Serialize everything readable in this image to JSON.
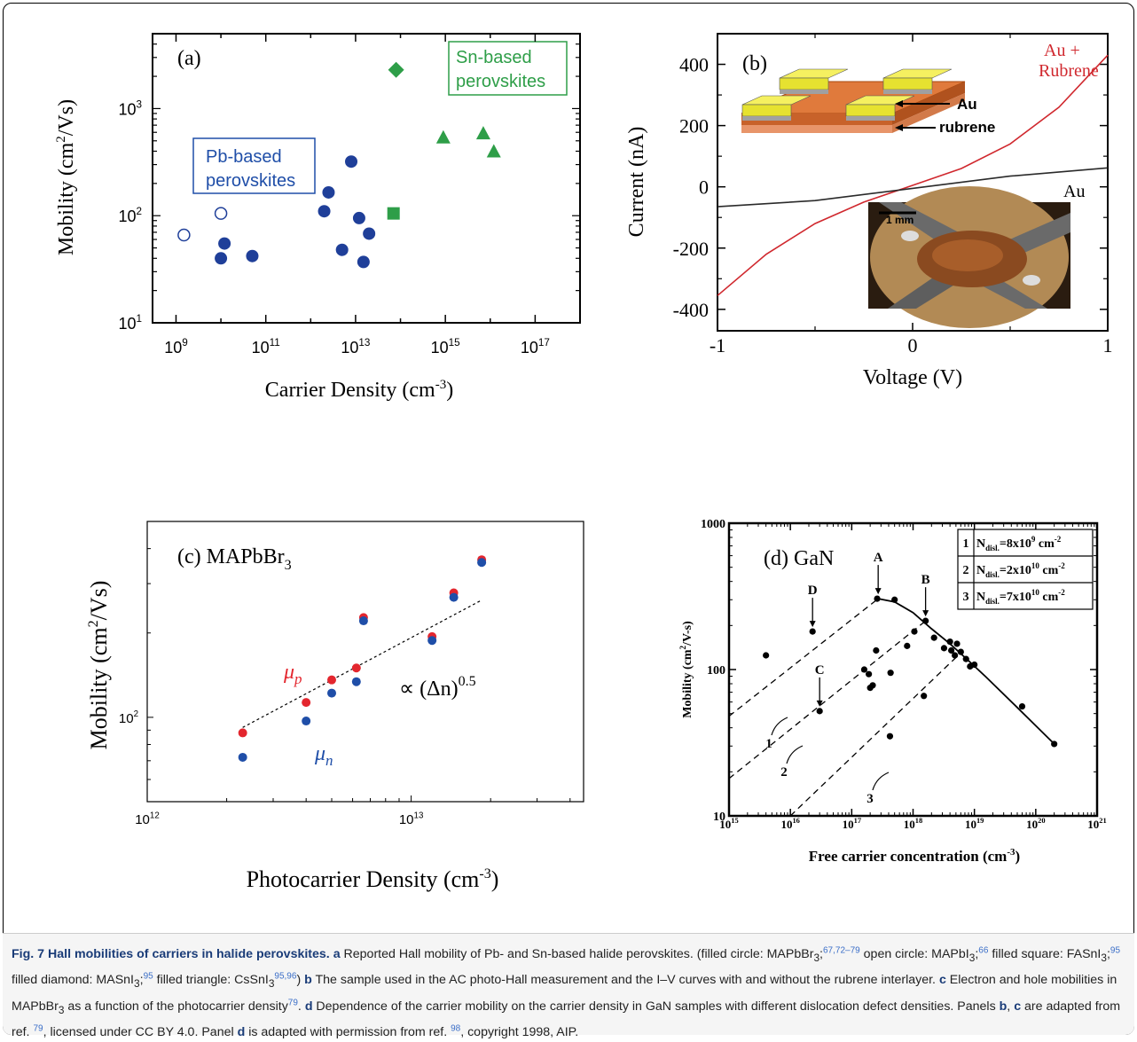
{
  "panels": [
    {
      "id": "a",
      "label": "(a)",
      "type": "scatter",
      "xlabel": "Carrier Density (cm",
      "xlabel_sup": "-3",
      "xlabel_end": ")",
      "ylabel": "Mobility (cm",
      "ylabel_sup": "2",
      "ylabel_end": "/Vs)",
      "x_scale": "log",
      "y_scale": "log",
      "xlim": [
        300000000.0,
        1e+18
      ],
      "ylim": [
        10,
        5000
      ],
      "x_ticks": [
        {
          "base": "10",
          "exp": "9",
          "v": 1000000000.0
        },
        {
          "base": "10",
          "exp": "11",
          "v": 100000000000.0
        },
        {
          "base": "10",
          "exp": "13",
          "v": 10000000000000.0
        },
        {
          "base": "10",
          "exp": "15",
          "v": 1000000000000000.0
        },
        {
          "base": "10",
          "exp": "17",
          "v": 1e+17
        }
      ],
      "y_ticks": [
        {
          "base": "10",
          "exp": "1",
          "v": 10
        },
        {
          "base": "10",
          "exp": "2",
          "v": 100
        },
        {
          "base": "10",
          "exp": "3",
          "v": 1000
        }
      ],
      "annotations": [
        {
          "name": "pb-label",
          "lines": [
            "Pb-based",
            "perovskites"
          ],
          "color": "#1f4ea8"
        },
        {
          "name": "sn-label",
          "lines": [
            "Sn-based",
            "perovskites"
          ],
          "color": "#2e9e48"
        }
      ],
      "series": [
        {
          "marker": "filled-circle",
          "color": "#1f3f99",
          "points": [
            [
              10000000000.0,
              40
            ],
            [
              12000000000.0,
              55
            ],
            [
              50000000000.0,
              42
            ],
            [
              5000000000000.0,
              48
            ],
            [
              12000000000000.0,
              95
            ],
            [
              15000000000000.0,
              37
            ],
            [
              20000000000000.0,
              68
            ],
            [
              2000000000000.0,
              110
            ],
            [
              2500000000000.0,
              165
            ],
            [
              8000000000000.0,
              320
            ]
          ]
        },
        {
          "marker": "open-circle",
          "color": "#1f3f99",
          "points": [
            [
              1500000000.0,
              66
            ],
            [
              10000000000.0,
              105
            ]
          ]
        },
        {
          "marker": "filled-square",
          "color": "#2e9e48",
          "points": [
            [
              70000000000000.0,
              105
            ]
          ]
        },
        {
          "marker": "filled-diamond",
          "color": "#2e9e48",
          "points": [
            [
              80000000000000.0,
              2300
            ]
          ]
        },
        {
          "marker": "filled-triangle",
          "color": "#2e9e48",
          "points": [
            [
              900000000000000.0,
              540
            ],
            [
              7000000000000000.0,
              590
            ],
            [
              1.2e+16,
              400
            ]
          ]
        }
      ]
    },
    {
      "id": "b",
      "label": "(b)",
      "type": "line",
      "xlabel": "Voltage (V)",
      "ylabel": "Current (nA)",
      "xlim": [
        -1,
        1
      ],
      "ylim": [
        -470,
        500
      ],
      "x_ticks": [
        "-1",
        "0",
        "1"
      ],
      "x_tick_values": [
        -1,
        0,
        1
      ],
      "y_ticks": [
        "-400",
        "-200",
        "0",
        "200",
        "400"
      ],
      "y_tick_values": [
        -400,
        -200,
        0,
        200,
        400
      ],
      "series": [
        {
          "name_lines": [
            "Au +",
            "Rubrene"
          ],
          "color": "#d0282e",
          "x": [
            -1,
            -0.75,
            -0.5,
            -0.25,
            0,
            0.25,
            0.5,
            0.75,
            1
          ],
          "y": [
            -355,
            -220,
            -120,
            -50,
            5,
            60,
            140,
            260,
            430
          ]
        },
        {
          "name_lines": [
            "Au"
          ],
          "color": "#2a2a2a",
          "x": [
            -1,
            -0.5,
            0,
            0.5,
            1
          ],
          "y": [
            -65,
            -45,
            -5,
            35,
            62
          ]
        }
      ],
      "inset_labels": {
        "au": "Au",
        "rubrene": "rubrene",
        "scale": "1 mm"
      }
    },
    {
      "id": "c",
      "label": "(c) MAPbBr",
      "label_sub": "3",
      "type": "scatter",
      "xlabel": "Photocarrier Density (cm",
      "xlabel_sup": "-3",
      "xlabel_end": ")",
      "ylabel": "Mobility (cm",
      "ylabel_sup": "2",
      "ylabel_end": "/Vs)",
      "x_scale": "log",
      "y_scale": "log",
      "xlim": [
        1000000000000.0,
        45000000000000.0
      ],
      "ylim": [
        50,
        500
      ],
      "x_ticks": [
        {
          "base": "10",
          "exp": "12",
          "v": 1000000000000.0
        },
        {
          "base": "10",
          "exp": "13",
          "v": 10000000000000.0
        }
      ],
      "y_ticks": [
        {
          "base": "10",
          "exp": "2",
          "v": 100
        }
      ],
      "mu_p_label": "μ",
      "mu_p_sub": "p",
      "mu_n_label": "μ",
      "mu_n_sub": "n",
      "fit_label": "∝ (Δn)",
      "fit_exp": "0.5",
      "series": [
        {
          "name": "μp",
          "color": "#e3262e",
          "x": [
            2300000000000.0,
            4000000000000.0,
            5000000000000.0,
            6200000000000.0,
            6600000000000.0,
            12000000000000.0,
            14500000000000.0,
            18500000000000.0
          ],
          "y": [
            88,
            113,
            136,
            150,
            227,
            194,
            278,
            365
          ]
        },
        {
          "name": "μn",
          "color": "#1f4ea8",
          "x": [
            2300000000000.0,
            4000000000000.0,
            5000000000000.0,
            6200000000000.0,
            6600000000000.0,
            12000000000000.0,
            14500000000000.0,
            18500000000000.0
          ],
          "y": [
            72,
            97,
            122,
            134,
            221,
            188,
            268,
            357
          ]
        }
      ],
      "fit": {
        "x": [
          2300000000000.0,
          18500000000000.0
        ],
        "y": [
          92,
          262
        ]
      }
    },
    {
      "id": "d",
      "label": "(d) GaN",
      "type": "scatter",
      "xlabel": "Free carrier concentration (cm",
      "xlabel_sup": "-3",
      "xlabel_end": ")",
      "ylabel": "Mobility (cm",
      "ylabel_sup": "2",
      "ylabel_end": "/V-s)",
      "x_scale": "log",
      "y_scale": "log",
      "xlim": [
        1000000000000000.0,
        1e+21
      ],
      "ylim": [
        10,
        1000
      ],
      "x_ticks": [
        {
          "base": "10",
          "exp": "15",
          "v": 1000000000000000.0
        },
        {
          "base": "10",
          "exp": "16",
          "v": 1e+16
        },
        {
          "base": "10",
          "exp": "17",
          "v": 1e+17
        },
        {
          "base": "10",
          "exp": "18",
          "v": 1e+18
        },
        {
          "base": "10",
          "exp": "19",
          "v": 1e+19
        },
        {
          "base": "10",
          "exp": "20",
          "v": 1e+20
        },
        {
          "base": "10",
          "exp": "21",
          "v": 1e+21
        }
      ],
      "y_ticks": [
        {
          "label": "10",
          "v": 10
        },
        {
          "label": "100",
          "v": 100
        },
        {
          "label": "1000",
          "v": 1000
        }
      ],
      "legend": [
        {
          "num": "1",
          "sym": "N",
          "sub": "disl.",
          "val": "=8x10",
          "exp": "9",
          "unit": " cm",
          "uexp": "-2"
        },
        {
          "num": "2",
          "sym": "N",
          "sub": "disl.",
          "val": "=2x10",
          "exp": "10",
          "unit": " cm",
          "uexp": "-2"
        },
        {
          "num": "3",
          "sym": "N",
          "sub": "disl.",
          "val": "=7x10",
          "exp": "10",
          "unit": " cm",
          "uexp": "-2"
        }
      ],
      "point_labels": [
        "A",
        "B",
        "C",
        "D"
      ],
      "curve_labels": [
        "1",
        "2",
        "3"
      ],
      "points": [
        [
          4000000000000000.0,
          125
        ],
        [
          2.3e+16,
          182
        ],
        [
          3e+16,
          52
        ],
        [
          1.6e+17,
          100
        ],
        [
          1.9e+17,
          93
        ],
        [
          2e+17,
          75
        ],
        [
          2.2e+17,
          78
        ],
        [
          2.5e+17,
          135
        ],
        [
          4.3e+17,
          95
        ],
        [
          4.2e+17,
          35
        ],
        [
          8e+17,
          145
        ],
        [
          1.05e+18,
          182
        ],
        [
          1.5e+18,
          66
        ],
        [
          2.2e+18,
          165
        ],
        [
          3.2e+18,
          140
        ],
        [
          4.2e+18,
          135
        ],
        [
          5.2e+18,
          150
        ],
        [
          6e+18,
          132
        ],
        [
          7.3e+18,
          118
        ],
        [
          8.5e+18,
          105
        ],
        [
          1e+19,
          108
        ],
        [
          6e+19,
          56
        ],
        [
          2e+20,
          31
        ],
        [
          2.6e+17,
          305
        ],
        [
          5e+17,
          300
        ],
        [
          1.6e+18,
          215
        ],
        [
          4e+18,
          155
        ],
        [
          4.8e+18,
          125
        ]
      ],
      "fit_curve": {
        "x": [
          2.7e+17,
          5e+17,
          1e+18,
          2e+18,
          4e+18,
          8e+18,
          1.5e+19,
          5e+19,
          2e+20
        ],
        "y": [
          305,
          290,
          245,
          190,
          150,
          115,
          90,
          55,
          31
        ]
      },
      "dashed": [
        {
          "x": [
            1000000000000000.0,
            2.7e+17
          ],
          "y": [
            48,
            305
          ]
        },
        {
          "x": [
            1000000000000000.0,
            1.6e+18
          ],
          "y": [
            18,
            215
          ]
        },
        {
          "x": [
            1e+16,
            6e+18
          ],
          "y": [
            10,
            130
          ]
        }
      ]
    }
  ],
  "caption": {
    "title": "Fig. 7 Hall mobilities of carriers in halide perovskites.",
    "a_label": "a",
    "a_text": " Reported Hall mobility of Pb- and Sn-based halide perovskites. (filled circle: MAPbBr",
    "b_label": "b",
    "c_label": "c",
    "d_label": "d"
  }
}
